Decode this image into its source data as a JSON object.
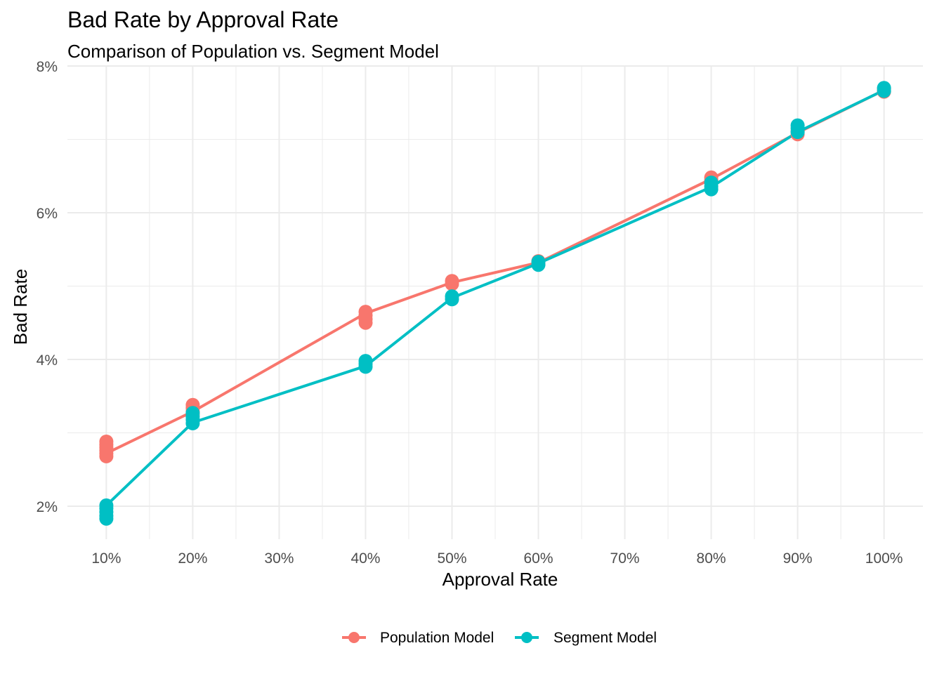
{
  "chart_data": {
    "type": "line",
    "title": "Bad Rate by Approval Rate",
    "subtitle": "Comparison of Population vs. Segment Model",
    "xlabel": "Approval Rate",
    "ylabel": "Bad Rate",
    "x_ticks": [
      "10%",
      "20%",
      "30%",
      "40%",
      "50%",
      "60%",
      "70%",
      "80%",
      "90%",
      "100%"
    ],
    "y_ticks": [
      "2%",
      "4%",
      "6%",
      "8%"
    ],
    "xlim": [
      0.055,
      1.045
    ],
    "ylim": [
      0.0155,
      0.08
    ],
    "grid": true,
    "legend_position": "bottom",
    "series": [
      {
        "name": "Population Model",
        "color": "#F8766D",
        "line": [
          [
            0.1,
            0.0272
          ],
          [
            0.2,
            0.0329
          ],
          [
            0.4,
            0.0463
          ],
          [
            0.5,
            0.0505
          ],
          [
            0.6,
            0.0532
          ],
          [
            0.8,
            0.0646
          ],
          [
            0.9,
            0.0709
          ],
          [
            1.0,
            0.0767
          ]
        ],
        "points": [
          [
            0.1,
            0.0268
          ],
          [
            0.1,
            0.0272
          ],
          [
            0.1,
            0.0276
          ],
          [
            0.1,
            0.028
          ],
          [
            0.1,
            0.0284
          ],
          [
            0.1,
            0.0288
          ],
          [
            0.2,
            0.0325
          ],
          [
            0.2,
            0.0329
          ],
          [
            0.2,
            0.0334
          ],
          [
            0.2,
            0.0338
          ],
          [
            0.4,
            0.045
          ],
          [
            0.4,
            0.0455
          ],
          [
            0.4,
            0.046
          ],
          [
            0.4,
            0.0465
          ],
          [
            0.5,
            0.0503
          ],
          [
            0.5,
            0.0507
          ],
          [
            0.6,
            0.053
          ],
          [
            0.6,
            0.0534
          ],
          [
            0.8,
            0.0644
          ],
          [
            0.8,
            0.0648
          ],
          [
            0.9,
            0.0707
          ],
          [
            0.9,
            0.0711
          ],
          [
            1.0,
            0.0765
          ],
          [
            1.0,
            0.0769
          ]
        ]
      },
      {
        "name": "Segment Model",
        "color": "#00BFC4",
        "line": [
          [
            0.1,
            0.0201
          ],
          [
            0.2,
            0.0314
          ],
          [
            0.4,
            0.0391
          ],
          [
            0.5,
            0.0484
          ],
          [
            0.6,
            0.0531
          ],
          [
            0.8,
            0.0635
          ],
          [
            0.9,
            0.071
          ],
          [
            1.0,
            0.0767
          ]
        ],
        "points": [
          [
            0.1,
            0.0183
          ],
          [
            0.1,
            0.0187
          ],
          [
            0.1,
            0.0192
          ],
          [
            0.1,
            0.0197
          ],
          [
            0.1,
            0.0201
          ],
          [
            0.2,
            0.0313
          ],
          [
            0.2,
            0.0318
          ],
          [
            0.2,
            0.0322
          ],
          [
            0.2,
            0.0327
          ],
          [
            0.4,
            0.039
          ],
          [
            0.4,
            0.0394
          ],
          [
            0.4,
            0.0398
          ],
          [
            0.5,
            0.0482
          ],
          [
            0.5,
            0.0486
          ],
          [
            0.6,
            0.0529
          ],
          [
            0.6,
            0.0533
          ],
          [
            0.8,
            0.0632
          ],
          [
            0.8,
            0.0636
          ],
          [
            0.8,
            0.0641
          ],
          [
            0.9,
            0.071
          ],
          [
            0.9,
            0.0715
          ],
          [
            0.9,
            0.0719
          ],
          [
            1.0,
            0.0766
          ],
          [
            1.0,
            0.077
          ]
        ]
      }
    ]
  }
}
